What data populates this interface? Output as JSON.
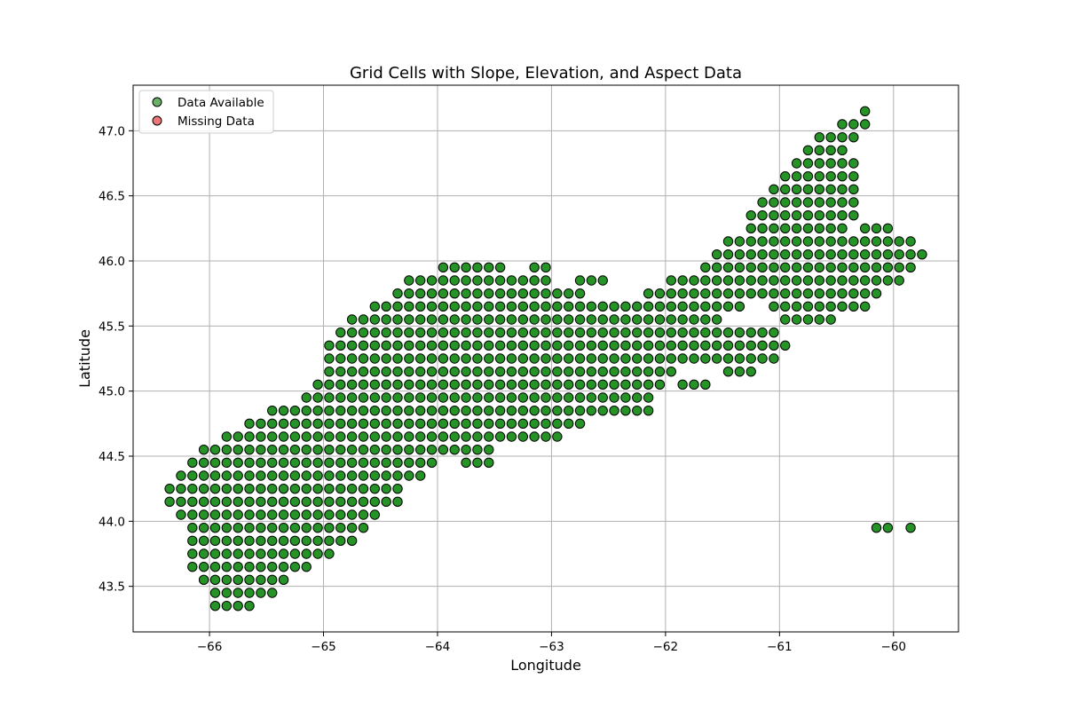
{
  "chart_data": {
    "type": "scatter",
    "title": "Grid Cells with Slope, Elevation, and Aspect Data",
    "xlabel": "Longitude",
    "ylabel": "Latitude",
    "xlim": [
      -66.67,
      -59.43
    ],
    "ylim": [
      43.15,
      47.35
    ],
    "xticks": [
      -66,
      -65,
      -64,
      -63,
      -62,
      -61,
      -60
    ],
    "xtick_labels": [
      "−66",
      "−65",
      "−64",
      "−63",
      "−62",
      "−61",
      "−60"
    ],
    "yticks": [
      43.5,
      44.0,
      44.5,
      45.0,
      45.5,
      46.0,
      46.5,
      47.0
    ],
    "ytick_labels": [
      "43.5",
      "44.0",
      "44.5",
      "45.0",
      "45.5",
      "46.0",
      "46.5",
      "47.0"
    ],
    "grid": true,
    "legend_position": "top-left",
    "grid_step": 0.1,
    "series": [
      {
        "name": "Data Available",
        "color": "#008000",
        "edge_color": "#000000",
        "rows": [
          {
            "lat": 47.15,
            "lon_ranges": [
              [
                -60.25,
                -60.25
              ]
            ]
          },
          {
            "lat": 47.05,
            "lon_ranges": [
              [
                -60.45,
                -60.25
              ]
            ]
          },
          {
            "lat": 46.95,
            "lon_ranges": [
              [
                -60.65,
                -60.35
              ]
            ]
          },
          {
            "lat": 46.85,
            "lon_ranges": [
              [
                -60.75,
                -60.45
              ]
            ]
          },
          {
            "lat": 46.75,
            "lon_ranges": [
              [
                -60.85,
                -60.35
              ]
            ]
          },
          {
            "lat": 46.65,
            "lon_ranges": [
              [
                -60.95,
                -60.35
              ]
            ]
          },
          {
            "lat": 46.55,
            "lon_ranges": [
              [
                -61.05,
                -60.35
              ]
            ]
          },
          {
            "lat": 46.45,
            "lon_ranges": [
              [
                -61.15,
                -60.35
              ]
            ]
          },
          {
            "lat": 46.35,
            "lon_ranges": [
              [
                -61.25,
                -60.35
              ]
            ]
          },
          {
            "lat": 46.25,
            "lon_ranges": [
              [
                -61.25,
                -60.45
              ],
              [
                -60.25,
                -60.15
              ],
              [
                -60.05,
                -60.05
              ]
            ]
          },
          {
            "lat": 46.15,
            "lon_ranges": [
              [
                -61.45,
                -59.95
              ],
              [
                -59.85,
                -59.85
              ]
            ]
          },
          {
            "lat": 46.05,
            "lon_ranges": [
              [
                -61.55,
                -59.75
              ]
            ]
          },
          {
            "lat": 45.95,
            "lon_ranges": [
              [
                -63.95,
                -63.45
              ],
              [
                -63.15,
                -63.05
              ],
              [
                -61.65,
                -59.85
              ]
            ]
          },
          {
            "lat": 45.85,
            "lon_ranges": [
              [
                -64.25,
                -63.05
              ],
              [
                -62.75,
                -62.55
              ],
              [
                -61.95,
                -60.25
              ],
              [
                -60.15,
                -59.95
              ]
            ]
          },
          {
            "lat": 45.75,
            "lon_ranges": [
              [
                -64.35,
                -62.75
              ],
              [
                -62.15,
                -60.35
              ],
              [
                -60.25,
                -60.15
              ]
            ]
          },
          {
            "lat": 45.65,
            "lon_ranges": [
              [
                -64.55,
                -61.35
              ],
              [
                -61.05,
                -60.25
              ]
            ]
          },
          {
            "lat": 45.55,
            "lon_ranges": [
              [
                -64.75,
                -61.55
              ],
              [
                -60.95,
                -60.55
              ]
            ]
          },
          {
            "lat": 45.45,
            "lon_ranges": [
              [
                -64.85,
                -61.05
              ]
            ]
          },
          {
            "lat": 45.35,
            "lon_ranges": [
              [
                -64.95,
                -60.95
              ]
            ]
          },
          {
            "lat": 45.25,
            "lon_ranges": [
              [
                -64.95,
                -61.05
              ]
            ]
          },
          {
            "lat": 45.15,
            "lon_ranges": [
              [
                -64.95,
                -61.95
              ],
              [
                -61.45,
                -61.25
              ]
            ]
          },
          {
            "lat": 45.05,
            "lon_ranges": [
              [
                -65.05,
                -62.05
              ],
              [
                -61.85,
                -61.75
              ],
              [
                -61.65,
                -61.65
              ]
            ]
          },
          {
            "lat": 44.95,
            "lon_ranges": [
              [
                -65.15,
                -62.15
              ]
            ]
          },
          {
            "lat": 44.85,
            "lon_ranges": [
              [
                -65.45,
                -62.15
              ]
            ]
          },
          {
            "lat": 44.75,
            "lon_ranges": [
              [
                -65.65,
                -62.75
              ]
            ]
          },
          {
            "lat": 44.65,
            "lon_ranges": [
              [
                -65.85,
                -62.95
              ]
            ]
          },
          {
            "lat": 44.55,
            "lon_ranges": [
              [
                -66.05,
                -63.55
              ]
            ]
          },
          {
            "lat": 44.45,
            "lon_ranges": [
              [
                -66.15,
                -64.05
              ],
              [
                -63.75,
                -63.55
              ]
            ]
          },
          {
            "lat": 44.35,
            "lon_ranges": [
              [
                -66.25,
                -64.15
              ]
            ]
          },
          {
            "lat": 44.25,
            "lon_ranges": [
              [
                -66.35,
                -64.35
              ]
            ]
          },
          {
            "lat": 44.15,
            "lon_ranges": [
              [
                -66.35,
                -64.35
              ]
            ]
          },
          {
            "lat": 44.05,
            "lon_ranges": [
              [
                -66.25,
                -64.55
              ]
            ]
          },
          {
            "lat": 43.95,
            "lon_ranges": [
              [
                -66.15,
                -64.65
              ],
              [
                -60.15,
                -60.05
              ],
              [
                -59.85,
                -59.85
              ]
            ]
          },
          {
            "lat": 43.85,
            "lon_ranges": [
              [
                -66.15,
                -64.75
              ]
            ]
          },
          {
            "lat": 43.75,
            "lon_ranges": [
              [
                -66.15,
                -64.95
              ]
            ]
          },
          {
            "lat": 43.65,
            "lon_ranges": [
              [
                -66.15,
                -65.15
              ]
            ]
          },
          {
            "lat": 43.55,
            "lon_ranges": [
              [
                -66.05,
                -65.35
              ]
            ]
          },
          {
            "lat": 43.45,
            "lon_ranges": [
              [
                -65.95,
                -65.45
              ]
            ]
          },
          {
            "lat": 43.35,
            "lon_ranges": [
              [
                -65.95,
                -65.65
              ]
            ]
          }
        ]
      },
      {
        "name": "Missing Data",
        "color": "#e31a1c",
        "edge_color": "#000000",
        "rows": []
      }
    ]
  }
}
